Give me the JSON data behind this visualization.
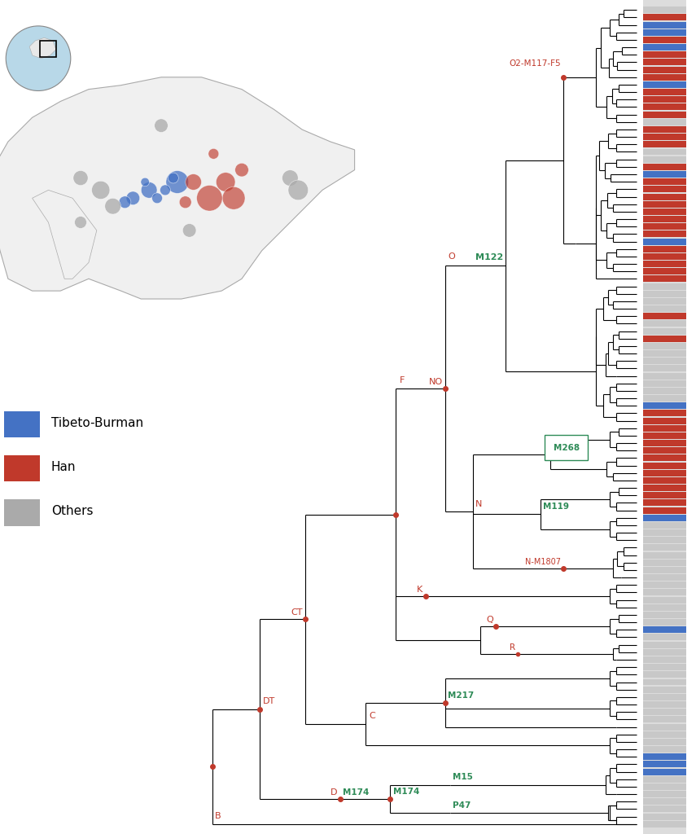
{
  "background_color": "#FFFFFF",
  "tree_line_color": "#000000",
  "node_marker_color": "#C0392B",
  "green_label_color": "#2E8B57",
  "red_label_color": "#C0392B",
  "legend_items": [
    {
      "label": "Tibeto-Burman",
      "color": "#4472C4"
    },
    {
      "label": "Han",
      "color": "#C0392B"
    },
    {
      "label": "Others",
      "color": "#AAAAAA"
    }
  ],
  "bar_colors_sequence": [
    "gray",
    "red",
    "blue",
    "blue",
    "red",
    "blue",
    "red",
    "red",
    "red",
    "red",
    "blue",
    "red",
    "red",
    "red",
    "red",
    "gray",
    "red",
    "red",
    "red",
    "gray",
    "gray",
    "red",
    "blue",
    "red",
    "red",
    "red",
    "red",
    "red",
    "red",
    "red",
    "red",
    "blue",
    "red",
    "red",
    "red",
    "red",
    "red",
    "gray",
    "gray",
    "gray",
    "gray",
    "red",
    "gray",
    "gray",
    "red",
    "gray",
    "gray",
    "gray",
    "gray",
    "gray",
    "gray",
    "gray",
    "gray",
    "blue",
    "red",
    "red",
    "red",
    "red",
    "red",
    "red",
    "red",
    "red",
    "red",
    "red",
    "red",
    "red",
    "red",
    "red",
    "blue",
    "gray",
    "gray",
    "gray",
    "gray",
    "gray",
    "gray",
    "gray",
    "gray",
    "gray",
    "gray",
    "gray",
    "gray",
    "gray",
    "gray",
    "blue",
    "gray",
    "gray",
    "gray",
    "gray",
    "gray",
    "gray",
    "gray",
    "gray",
    "gray",
    "gray",
    "gray",
    "gray",
    "gray",
    "gray",
    "gray",
    "gray",
    "blue",
    "blue",
    "blue",
    "gray",
    "gray",
    "gray",
    "gray",
    "gray",
    "gray",
    "gray"
  ]
}
